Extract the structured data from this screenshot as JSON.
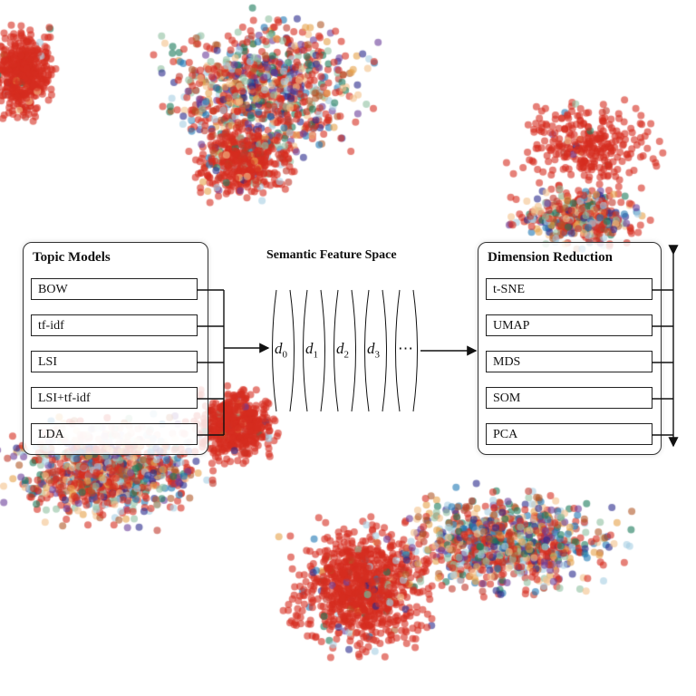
{
  "topic_models": {
    "title": "Topic Models",
    "items": [
      "BOW",
      "tf-idf",
      "LSI",
      "LSI+tf-idf",
      "LDA"
    ]
  },
  "feature_space": {
    "title": "Semantic Feature Space",
    "dims": [
      {
        "base": "d",
        "sub": "0"
      },
      {
        "base": "d",
        "sub": "1"
      },
      {
        "base": "d",
        "sub": "2"
      },
      {
        "base": "d",
        "sub": "3"
      }
    ],
    "ellipsis": "⋯"
  },
  "dimension_reduction": {
    "title": "Dimension Reduction",
    "items": [
      "t-SNE",
      "UMAP",
      "MDS",
      "SOM",
      "PCA"
    ]
  },
  "palette": [
    "#d62d20",
    "#d62d20",
    "#d62d20",
    "#a6cee3",
    "#1f78b4",
    "#e6a24a",
    "#2a2a8c",
    "#1b7a5a",
    "#b15928",
    "#8fbfa0",
    "#c0392b",
    "#6a3d9a",
    "#f4c28a"
  ]
}
